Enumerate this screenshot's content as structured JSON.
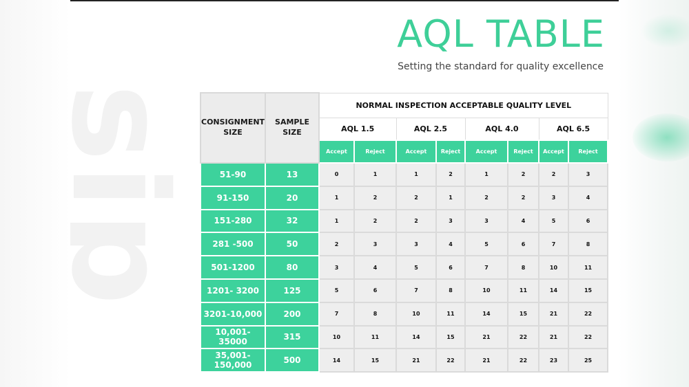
{
  "watermark": "sip",
  "title": "AQL TABLE",
  "subtitle": "Setting the standard for quality excellence",
  "table": {
    "col_consignment_line1": "CONSIGNMENT",
    "col_consignment_line2": "SIZE",
    "col_sample_line1": "SAMPLE",
    "col_sample_line2": "SIZE",
    "group_header": "NORMAL INSPECTION ACCEPTABLE QUALITY LEVEL",
    "aql_levels": [
      "AQL 1.5",
      "AQL 2.5",
      "AQL 4.0",
      "AQL 6.5"
    ],
    "accept_label": "Accept",
    "reject_label": "Reject",
    "rows": [
      {
        "consignment": "51-90",
        "sample": "13",
        "values": [
          "0",
          "1",
          "1",
          "2",
          "1",
          "2",
          "2",
          "3"
        ]
      },
      {
        "consignment": "91-150",
        "sample": "20",
        "values": [
          "1",
          "2",
          "2",
          "1",
          "2",
          "2",
          "3",
          "4"
        ]
      },
      {
        "consignment": "151-280",
        "sample": "32",
        "values": [
          "1",
          "2",
          "2",
          "3",
          "3",
          "4",
          "5",
          "6"
        ]
      },
      {
        "consignment": "281 -500",
        "sample": "50",
        "values": [
          "2",
          "3",
          "3",
          "4",
          "5",
          "6",
          "7",
          "8"
        ]
      },
      {
        "consignment": "501-1200",
        "sample": "80",
        "values": [
          "3",
          "4",
          "5",
          "6",
          "7",
          "8",
          "10",
          "11"
        ]
      },
      {
        "consignment": "1201- 3200",
        "sample": "125",
        "values": [
          "5",
          "6",
          "7",
          "8",
          "10",
          "11",
          "14",
          "15"
        ]
      },
      {
        "consignment": "3201-10,000",
        "sample": "200",
        "values": [
          "7",
          "8",
          "10",
          "11",
          "14",
          "15",
          "21",
          "22"
        ]
      },
      {
        "consignment": "10,001-35000",
        "sample": "315",
        "values": [
          "10",
          "11",
          "14",
          "15",
          "21",
          "22",
          "21",
          "22"
        ]
      },
      {
        "consignment": "35,001-150,000",
        "sample": "500",
        "values": [
          "14",
          "15",
          "21",
          "22",
          "21",
          "22",
          "23",
          "25"
        ]
      }
    ]
  },
  "colors": {
    "accent": "#3dd29c",
    "header_grey": "#ececec",
    "cell_grey": "#eeeeee"
  }
}
